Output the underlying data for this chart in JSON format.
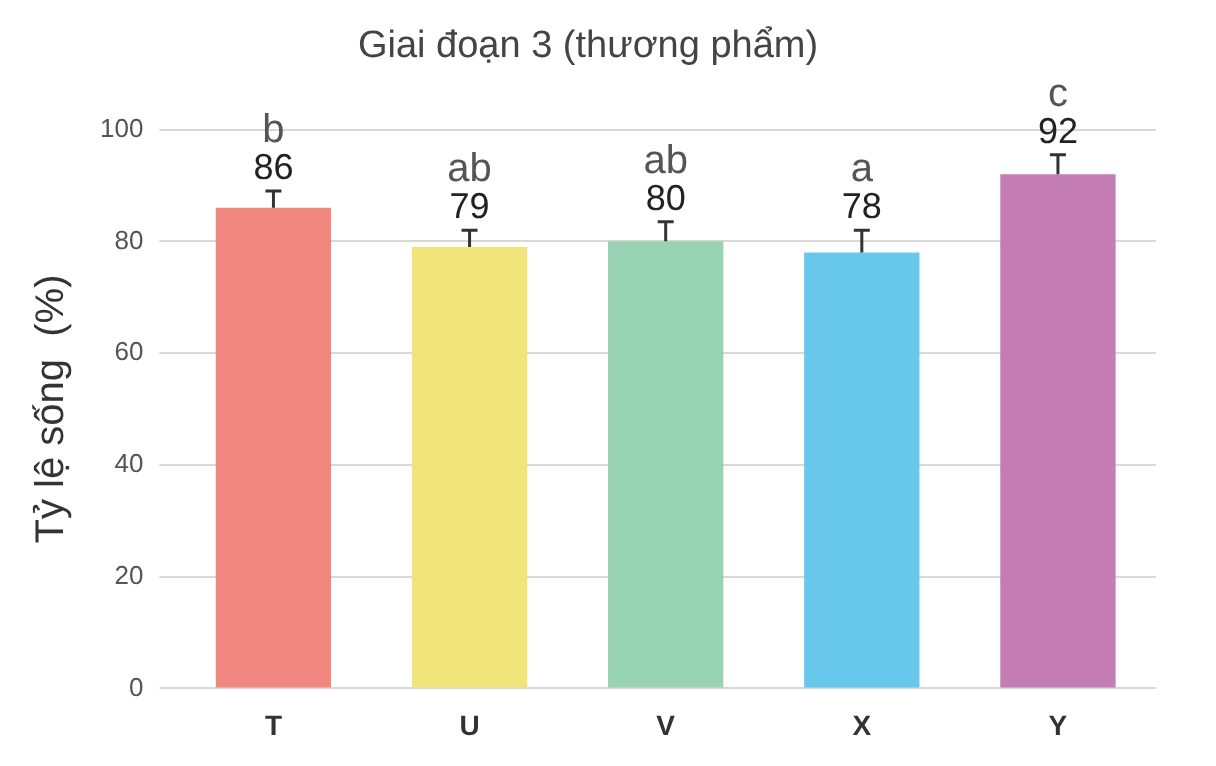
{
  "chart_data": {
    "type": "bar",
    "title": "Giai đoạn 3 (thương phẩm)",
    "ylabel": "Tỷ lệ sống  (%)",
    "categories": [
      "T",
      "U",
      "V",
      "X",
      "Y"
    ],
    "values": [
      86,
      79,
      80,
      78,
      92
    ],
    "colors": [
      "#f08880",
      "#f0e47a",
      "#98d4b4",
      "#68c8ec",
      "#c47cb4"
    ],
    "errors": [
      [
        86,
        89
      ],
      [
        79,
        82
      ],
      [
        80,
        83.5
      ],
      [
        78,
        82
      ],
      [
        92,
        95.5
      ]
    ],
    "data_labels": true,
    "annotations": [
      {
        "text": "b",
        "x": "T",
        "y": 86
      },
      {
        "text": "ab",
        "x": "U",
        "y": 79
      },
      {
        "text": "ab",
        "x": "V",
        "y": 80
      },
      {
        "text": "a",
        "x": "X",
        "y": 78
      },
      {
        "text": "c",
        "x": "Y",
        "y": 92
      }
    ],
    "ylim": [
      0,
      100
    ],
    "yticks": [
      0,
      20,
      40,
      60,
      80,
      100
    ],
    "grid": "y",
    "legend": false
  }
}
